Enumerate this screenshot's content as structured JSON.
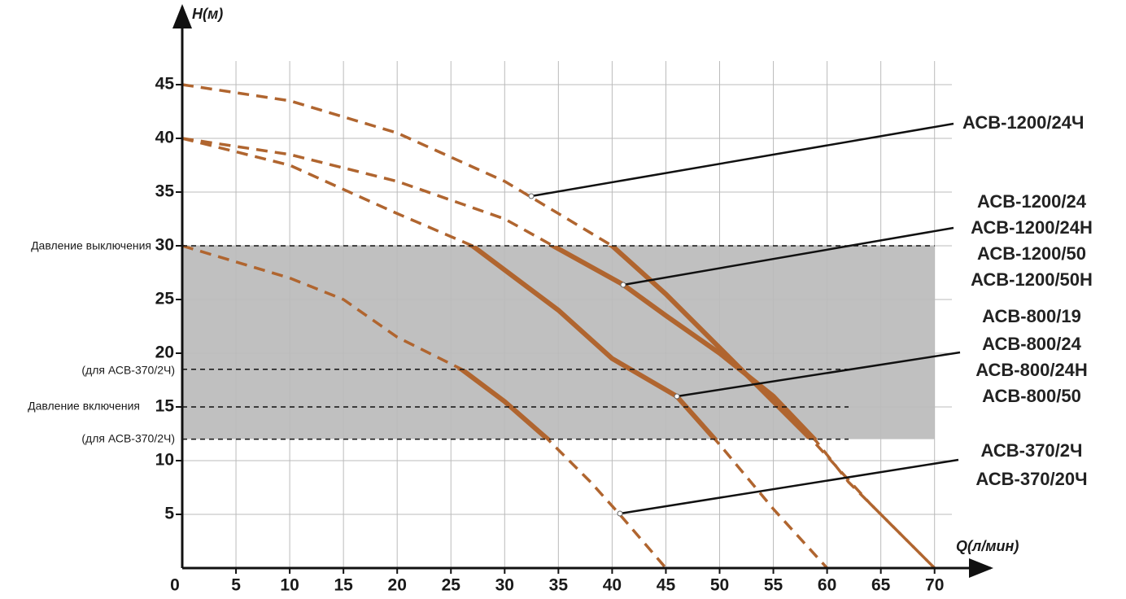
{
  "chart_data": {
    "type": "line",
    "x_label": "Q(л/мин)",
    "y_label": "H(м)",
    "xlim": [
      0,
      74
    ],
    "ylim": [
      0,
      52
    ],
    "xticks": [
      0,
      5,
      10,
      15,
      20,
      25,
      30,
      35,
      40,
      45,
      50,
      55,
      60,
      65,
      70
    ],
    "yticks": [
      5,
      10,
      15,
      20,
      25,
      30,
      35,
      40,
      45
    ],
    "grid": true,
    "band": {
      "x": [
        0,
        70
      ],
      "y": [
        12,
        30
      ],
      "color": "#c0c0c0"
    },
    "reference_lines": [
      {
        "value": 30,
        "label": "Давление выключения",
        "x_end": 70
      },
      {
        "value": 18.5,
        "label": "(для АСВ-370/2Ч)",
        "x_end": 62
      },
      {
        "value": 15,
        "label": "Давление включения",
        "x_end": 62
      },
      {
        "value": 12,
        "label": "(для АСВ-370/2Ч)",
        "x_end": 62
      }
    ],
    "series": [
      {
        "name": [
          "АСВ-1200/24Ч"
        ],
        "color": "#b0652f",
        "solid_range": [
          12,
          30
        ],
        "x": [
          0,
          10,
          20,
          30,
          32.5,
          40,
          45,
          50,
          55,
          59,
          64,
          70
        ],
        "values": [
          45,
          43.5,
          40.5,
          36,
          34.5,
          30,
          25.5,
          20.5,
          15.5,
          11.5,
          6,
          0
        ]
      },
      {
        "name": [
          "АСВ-1200/24",
          "АСВ-1200/24Н",
          "АСВ-1200/50",
          "АСВ-1200/50Н"
        ],
        "color": "#b0652f",
        "solid_range": [
          12,
          30
        ],
        "x": [
          0,
          10,
          20,
          30,
          34.5,
          41,
          45,
          50,
          55,
          59,
          62,
          66,
          70
        ],
        "values": [
          40,
          38.5,
          36,
          32.5,
          30,
          26.4,
          23.5,
          20,
          16,
          11.8,
          8,
          4,
          0
        ]
      },
      {
        "name": [
          "АСВ-800/19",
          "АСВ-800/24",
          "АСВ-800/24Н",
          "АСВ-800/50"
        ],
        "color": "#b0652f",
        "solid_range": [
          12,
          30
        ],
        "x": [
          0,
          10,
          20,
          27,
          35,
          40,
          46,
          50,
          55,
          60
        ],
        "values": [
          40,
          37.5,
          33,
          30,
          24,
          19.5,
          16,
          11.5,
          5.5,
          0
        ]
      },
      {
        "name": [
          "АСВ-370/2Ч",
          "АСВ-370/20Ч"
        ],
        "color": "#b0652f",
        "solid_range": [
          12,
          18.5
        ],
        "x": [
          0,
          10,
          15,
          20,
          26,
          30,
          34,
          38,
          40.7,
          45
        ],
        "values": [
          30,
          27,
          25,
          21.5,
          18.5,
          15.5,
          12,
          8,
          5,
          0
        ]
      }
    ]
  }
}
